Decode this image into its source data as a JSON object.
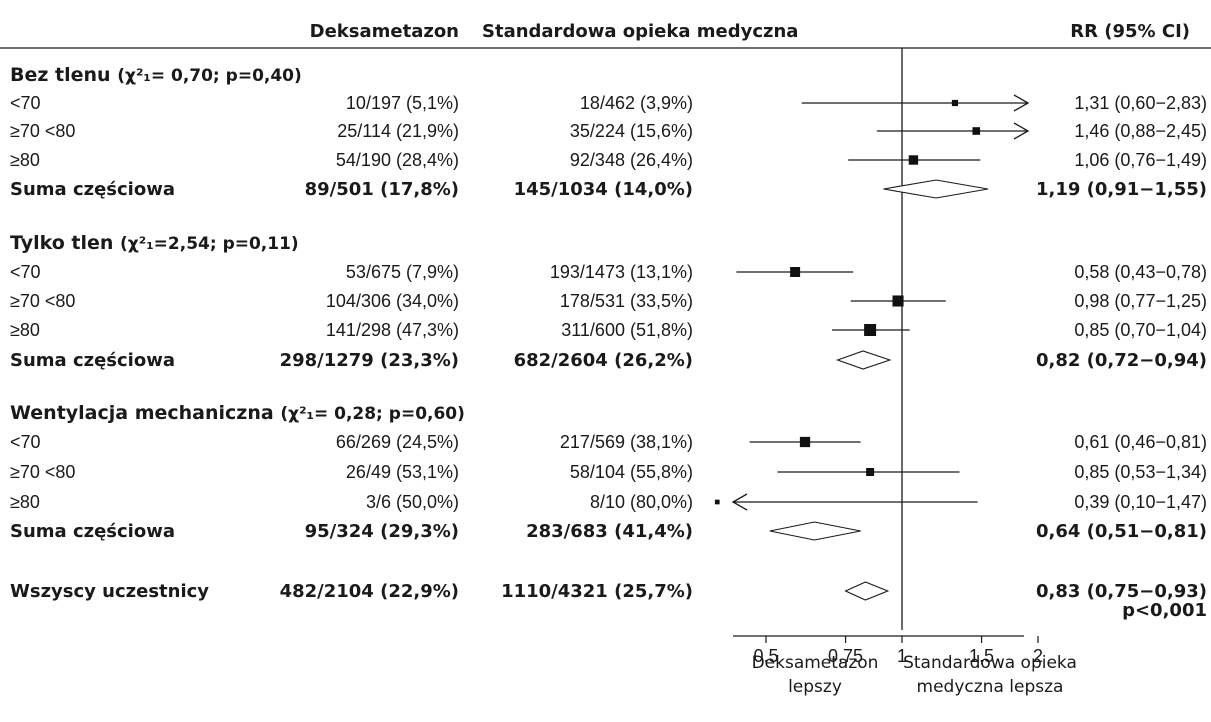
{
  "header": {
    "col_dex": "Deksametazon",
    "col_std": "Standardowa opieka medyczna",
    "col_rr": "RR (95% CI)"
  },
  "groups": [
    {
      "name": "Bez tlenu",
      "stat": "(χ²₁= 0,70; p=0,40)",
      "rows": [
        {
          "label": "<70",
          "dex": "10/197 (5,1%)",
          "std": "18/462 (3,9%)",
          "rr_text": "1,31 (0,60−2,83)"
        },
        {
          "label": "≥70 <80",
          "dex": "25/114 (21,9%)",
          "std": "35/224 (15,6%)",
          "rr_text": "1,46 (0,88−2,45)"
        },
        {
          "label": "≥80",
          "dex": "54/190 (28,4%)",
          "std": "92/348 (26,4%)",
          "rr_text": "1,06 (0,76−1,49)"
        }
      ],
      "subtotal": {
        "label": "Suma częściowa",
        "dex": "89/501 (17,8%)",
        "std": "145/1034 (14,0%)",
        "rr_text": "1,19 (0,91−1,55)"
      }
    },
    {
      "name": "Tylko tlen",
      "stat": "(χ²₁=2,54; p=0,11)",
      "rows": [
        {
          "label": "<70",
          "dex": "53/675 (7,9%)",
          "std": "193/1473 (13,1%)",
          "rr_text": "0,58 (0,43−0,78)"
        },
        {
          "label": "≥70 <80",
          "dex": "104/306 (34,0%)",
          "std": "178/531 (33,5%)",
          "rr_text": "0,98 (0,77−1,25)"
        },
        {
          "label": "≥80",
          "dex": "141/298 (47,3%)",
          "std": "311/600 (51,8%)",
          "rr_text": "0,85 (0,70−1,04)"
        }
      ],
      "subtotal": {
        "label": "Suma częściowa",
        "dex": "298/1279 (23,3%)",
        "std": "682/2604 (26,2%)",
        "rr_text": "0,82 (0,72−0,94)"
      }
    },
    {
      "name": "Wentylacja mechaniczna",
      "stat": "(χ²₁= 0,28; p=0,60)",
      "rows": [
        {
          "label": "<70",
          "dex": "66/269 (24,5%)",
          "std": "217/569 (38,1%)",
          "rr_text": "0,61 (0,46−0,81)"
        },
        {
          "label": "≥70 <80",
          "dex": "26/49 (53,1%)",
          "std": "58/104 (55,8%)",
          "rr_text": "0,85 (0,53−1,34)"
        },
        {
          "label": "≥80",
          "dex": "3/6 (50,0%)",
          "std": "8/10 (80,0%)",
          "rr_text": "0,39 (0,10−1,47)"
        }
      ],
      "subtotal": {
        "label": "Suma częściowa",
        "dex": "95/324 (29,3%)",
        "std": "283/683 (41,4%)",
        "rr_text": "0,64 (0,51−0,81)"
      }
    }
  ],
  "overall": {
    "label": "Wszyscy uczestnicy",
    "dex": "482/2104 (22,9%)",
    "std": "1110/4321 (25,7%)",
    "rr_text": "0,83 (0,75−0,93)",
    "p_text": "p<0,001"
  },
  "axis": {
    "tick_labels": [
      "0,5",
      "0,75",
      "1",
      "1,5",
      "2"
    ],
    "left_caption": [
      "Deksametazon",
      "lepszy"
    ],
    "right_caption": [
      "Standardowa opieka",
      "medyczna lepsza"
    ]
  },
  "chart_data": {
    "type": "forest",
    "scale": "log",
    "xlim": [
      0.35,
      2.0
    ],
    "reference_line": 1,
    "ticks": [
      0.5,
      0.75,
      1,
      1.5,
      2
    ],
    "rows": [
      {
        "group": "Bez tlenu",
        "label": "<70",
        "rr": 1.31,
        "lo": 0.6,
        "hi": 2.83,
        "kind": "point"
      },
      {
        "group": "Bez tlenu",
        "label": "≥70 <80",
        "rr": 1.46,
        "lo": 0.88,
        "hi": 2.45,
        "kind": "point"
      },
      {
        "group": "Bez tlenu",
        "label": "≥80",
        "rr": 1.06,
        "lo": 0.76,
        "hi": 1.49,
        "kind": "point"
      },
      {
        "group": "Bez tlenu",
        "label": "Suma częściowa",
        "rr": 1.19,
        "lo": 0.91,
        "hi": 1.55,
        "kind": "diamond"
      },
      {
        "group": "Tylko tlen",
        "label": "<70",
        "rr": 0.58,
        "lo": 0.43,
        "hi": 0.78,
        "kind": "point"
      },
      {
        "group": "Tylko tlen",
        "label": "≥70 <80",
        "rr": 0.98,
        "lo": 0.77,
        "hi": 1.25,
        "kind": "point"
      },
      {
        "group": "Tylko tlen",
        "label": "≥80",
        "rr": 0.85,
        "lo": 0.7,
        "hi": 1.04,
        "kind": "point"
      },
      {
        "group": "Tylko tlen",
        "label": "Suma częściowa",
        "rr": 0.82,
        "lo": 0.72,
        "hi": 0.94,
        "kind": "diamond"
      },
      {
        "group": "Wentylacja mechaniczna",
        "label": "<70",
        "rr": 0.61,
        "lo": 0.46,
        "hi": 0.81,
        "kind": "point"
      },
      {
        "group": "Wentylacja mechaniczna",
        "label": "≥70 <80",
        "rr": 0.85,
        "lo": 0.53,
        "hi": 1.34,
        "kind": "point"
      },
      {
        "group": "Wentylacja mechaniczna",
        "label": "≥80",
        "rr": 0.39,
        "lo": 0.1,
        "hi": 1.47,
        "kind": "point"
      },
      {
        "group": "Wentylacja mechaniczna",
        "label": "Suma częściowa",
        "rr": 0.64,
        "lo": 0.51,
        "hi": 0.81,
        "kind": "diamond"
      },
      {
        "group": "Wszyscy uczestnicy",
        "label": "Wszyscy uczestnicy",
        "rr": 0.83,
        "lo": 0.75,
        "hi": 0.93,
        "kind": "diamond"
      }
    ]
  }
}
